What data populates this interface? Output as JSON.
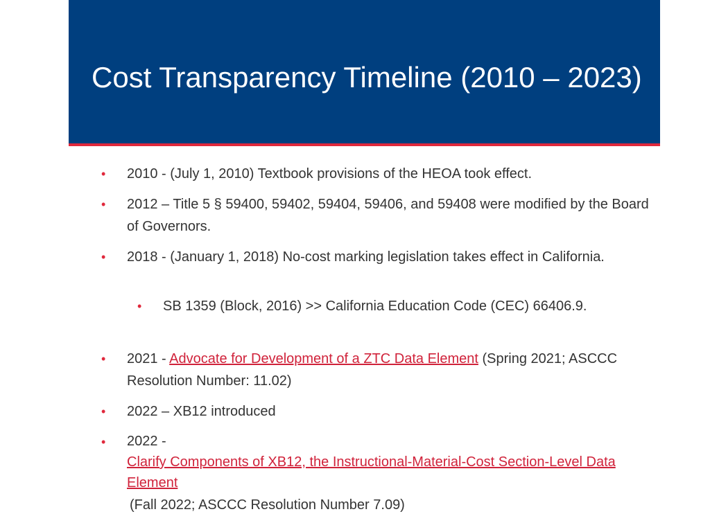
{
  "slide": {
    "title": "Cost Transparency Timeline (2010 – 2023)",
    "items": [
      {
        "text": "2010 - (July 1, 2010) Textbook provisions of the HEOA took effect."
      },
      {
        "text": "2012 – Title 5 § 59400, 59402, 59404, 59406, and 59408 were modified by the Board of Governors."
      },
      {
        "text": "2018 - (January 1, 2018) No-cost marking legislation takes effect in California."
      },
      {
        "text": "SB 1359 (Block, 2016) >> California Education Code (CEC) 66406.9."
      },
      {
        "prefix": "2021 - ",
        "link": "Advocate for Development of a ZTC Data Element",
        "suffix": " (Spring 2021; ASCCC Resolution Number: 11.02)"
      },
      {
        "text": "2022 – XB12 introduced"
      },
      {
        "prefix": "2022 - ",
        "link": "Clarify Components of XB12, the Instructional-Material-Cost Section-Level Data Element",
        "suffix": " (Fall 2022; ASCCC Resolution Number 7.09)"
      }
    ]
  },
  "colors": {
    "title_bar": "#003f7f",
    "accent": "#e0283c",
    "body_text": "#333333",
    "link": "#d0223a"
  }
}
